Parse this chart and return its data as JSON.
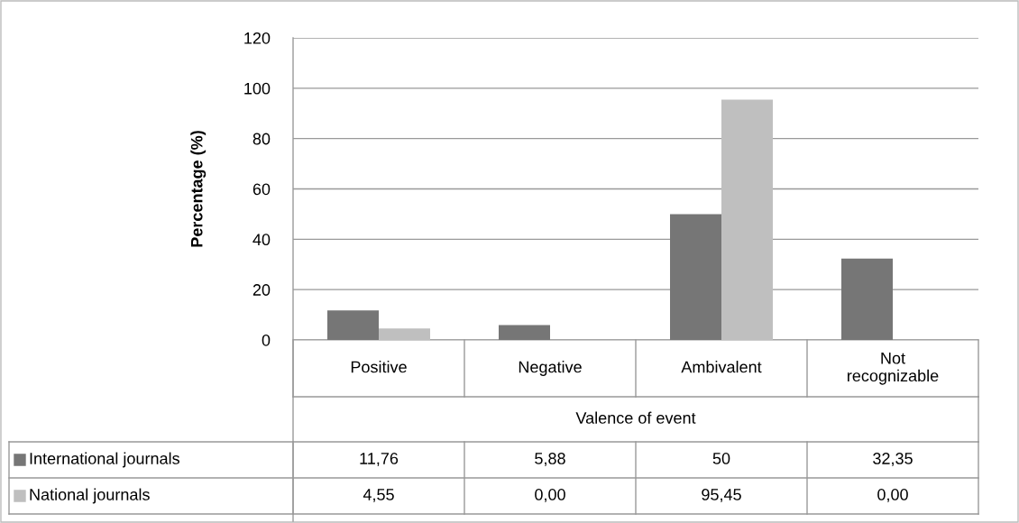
{
  "chart_data": {
    "type": "bar",
    "ylabel": "Percentage (%)",
    "xlabel": "Valence of event",
    "categories": [
      "Positive",
      "Negative",
      "Ambivalent",
      "Not\nrecognizable"
    ],
    "series": [
      {
        "name": "International journals",
        "color": "#767676",
        "values": [
          11.76,
          5.88,
          50,
          32.35
        ],
        "value_labels": [
          "11,76",
          "5,88",
          "50",
          "32,35"
        ]
      },
      {
        "name": "National journals",
        "color": "#bfbfbf",
        "values": [
          4.55,
          0.0,
          95.45,
          0.0
        ],
        "value_labels": [
          "4,55",
          "0,00",
          "95,45",
          "0,00"
        ]
      }
    ],
    "ylim": [
      0,
      120
    ],
    "yticks": [
      0,
      20,
      40,
      60,
      80,
      100,
      120
    ],
    "grid": "y",
    "legend": "bottom"
  }
}
